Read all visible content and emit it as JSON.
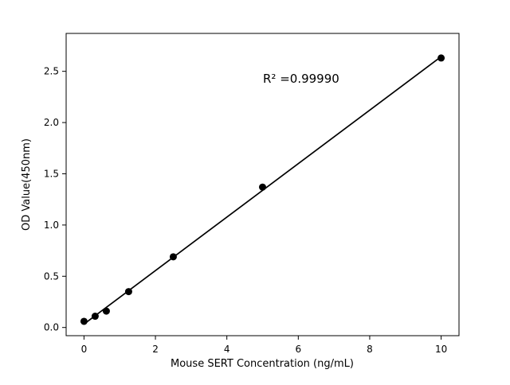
{
  "chart_data": {
    "type": "scatter",
    "title": "",
    "xlabel": "Mouse SERT Concentration (ng/mL)",
    "ylabel": "OD Value(450nm)",
    "annotation": "R² =0.99990",
    "x": [
      0,
      0.3125,
      0.625,
      1.25,
      2.5,
      5,
      10
    ],
    "y": [
      0.06,
      0.11,
      0.16,
      0.35,
      0.69,
      1.37,
      2.63
    ],
    "fit_line": {
      "x": [
        0,
        10
      ],
      "y": [
        0.033,
        2.643
      ]
    },
    "xlim": [
      -0.5,
      10.5
    ],
    "ylim": [
      -0.08,
      2.87
    ],
    "xticks": [
      0,
      2,
      4,
      6,
      8,
      10
    ],
    "yticks": [
      0.0,
      0.5,
      1.0,
      1.5,
      2.0,
      2.5
    ],
    "grid": false,
    "legend": null,
    "marker": {
      "shape": "circle",
      "color": "#000000",
      "radius": 4.5
    },
    "line_color": "#000000",
    "axis_color": "#000000",
    "background": "#ffffff"
  }
}
